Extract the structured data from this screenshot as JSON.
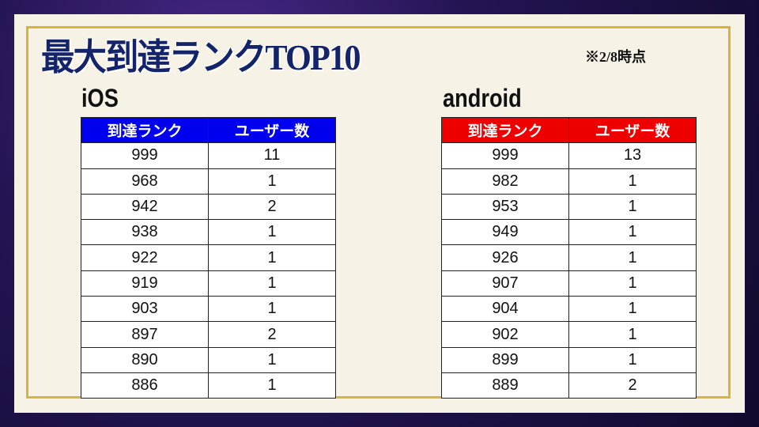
{
  "title": "最大到達ランクTOP10",
  "note": "※2/8時点",
  "colors": {
    "ios_header": "#0000ee",
    "android_header": "#ee0000",
    "title": "#14246b",
    "frame": "#d7b43a"
  },
  "tables": [
    {
      "platform": "iOS",
      "headers": [
        "到達ランク",
        "ユーザー数"
      ],
      "rows": [
        [
          "999",
          "11"
        ],
        [
          "968",
          "1"
        ],
        [
          "942",
          "2"
        ],
        [
          "938",
          "1"
        ],
        [
          "922",
          "1"
        ],
        [
          "919",
          "1"
        ],
        [
          "903",
          "1"
        ],
        [
          "897",
          "2"
        ],
        [
          "890",
          "1"
        ],
        [
          "886",
          "1"
        ]
      ]
    },
    {
      "platform": "android",
      "headers": [
        "到達ランク",
        "ユーザー数"
      ],
      "rows": [
        [
          "999",
          "13"
        ],
        [
          "982",
          "1"
        ],
        [
          "953",
          "1"
        ],
        [
          "949",
          "1"
        ],
        [
          "926",
          "1"
        ],
        [
          "907",
          "1"
        ],
        [
          "904",
          "1"
        ],
        [
          "902",
          "1"
        ],
        [
          "899",
          "1"
        ],
        [
          "889",
          "2"
        ]
      ]
    }
  ]
}
